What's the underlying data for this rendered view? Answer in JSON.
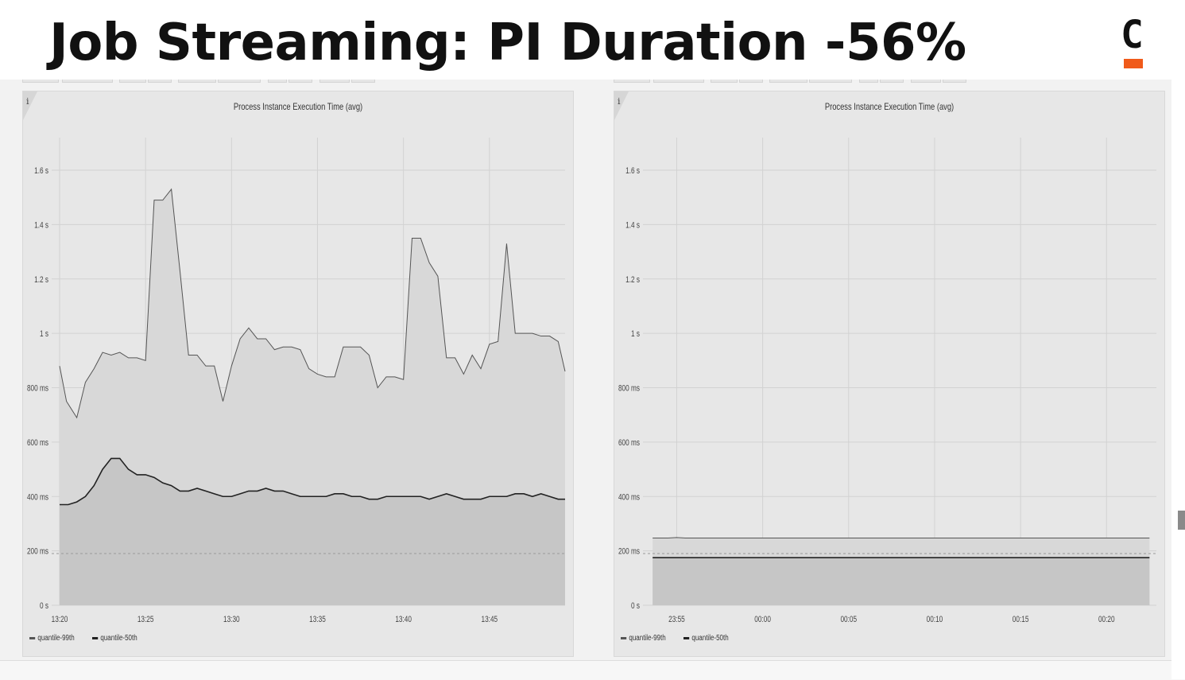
{
  "title": "Job Streaming: PI Duration -56%",
  "logo": {
    "letter": "C",
    "accent": "#f05a1a"
  },
  "colors": {
    "panel": "#e7e7e7",
    "grid": "#d2d2d2",
    "p99_fill": "#d8d8d8",
    "p50_fill": "#c6c6c6",
    "p99_line": "#555555",
    "p50_line": "#222222"
  },
  "chart_data": [
    {
      "type": "area",
      "title": "Process Instance Execution Time (avg)",
      "y_ticks": [
        "0 s",
        "200 ms",
        "400 ms",
        "600 ms",
        "800 ms",
        "1 s",
        "1.2 s",
        "1.4 s",
        "1.6 s"
      ],
      "ylim": [
        0,
        1.72
      ],
      "xlim": [
        0,
        29.4
      ],
      "x_ticks": [
        {
          "label": "13:20",
          "at": 0
        },
        {
          "label": "13:25",
          "at": 5
        },
        {
          "label": "13:30",
          "at": 10
        },
        {
          "label": "13:35",
          "at": 15
        },
        {
          "label": "13:40",
          "at": 20
        },
        {
          "label": "13:45",
          "at": 25
        }
      ],
      "threshold": 0.19,
      "series": [
        {
          "name": "quantile-99th",
          "x": [
            0,
            0.4,
            1,
            1.5,
            2,
            2.5,
            3,
            3.5,
            4,
            4.5,
            5,
            5.5,
            6,
            6.5,
            7,
            7.5,
            8,
            8.5,
            9,
            9.5,
            10,
            10.5,
            11,
            11.5,
            12,
            12.5,
            13,
            13.5,
            14,
            14.5,
            15,
            15.5,
            16,
            16.5,
            17,
            17.5,
            18,
            18.5,
            19,
            19.5,
            20,
            20.5,
            21,
            21.5,
            22,
            22.5,
            23,
            23.5,
            24,
            24.5,
            25,
            25.5,
            26,
            26.5,
            27,
            27.5,
            28,
            28.5,
            29,
            29.4
          ],
          "values": [
            0.88,
            0.75,
            0.69,
            0.82,
            0.87,
            0.93,
            0.92,
            0.93,
            0.91,
            0.91,
            0.9,
            1.49,
            1.49,
            1.53,
            1.23,
            0.92,
            0.92,
            0.88,
            0.88,
            0.75,
            0.88,
            0.98,
            1.02,
            0.98,
            0.98,
            0.94,
            0.95,
            0.95,
            0.94,
            0.87,
            0.85,
            0.84,
            0.84,
            0.95,
            0.95,
            0.95,
            0.92,
            0.8,
            0.84,
            0.84,
            0.83,
            1.35,
            1.35,
            1.26,
            1.21,
            0.91,
            0.91,
            0.85,
            0.92,
            0.87,
            0.96,
            0.97,
            1.33,
            1.0,
            1.0,
            1.0,
            0.99,
            0.99,
            0.97,
            0.86
          ]
        },
        {
          "name": "quantile-50th",
          "x": [
            0,
            0.5,
            1,
            1.5,
            2,
            2.5,
            3,
            3.5,
            4,
            4.5,
            5,
            5.5,
            6,
            6.5,
            7,
            7.5,
            8,
            8.5,
            9,
            9.5,
            10,
            10.5,
            11,
            11.5,
            12,
            12.5,
            13,
            13.5,
            14,
            14.5,
            15,
            15.5,
            16,
            16.5,
            17,
            17.5,
            18,
            18.5,
            19,
            19.5,
            20,
            20.5,
            21,
            21.5,
            22,
            22.5,
            23,
            23.5,
            24,
            24.5,
            25,
            25.5,
            26,
            26.5,
            27,
            27.5,
            28,
            28.5,
            29,
            29.4
          ],
          "values": [
            0.37,
            0.37,
            0.38,
            0.4,
            0.44,
            0.5,
            0.54,
            0.54,
            0.5,
            0.48,
            0.48,
            0.47,
            0.45,
            0.44,
            0.42,
            0.42,
            0.43,
            0.42,
            0.41,
            0.4,
            0.4,
            0.41,
            0.42,
            0.42,
            0.43,
            0.42,
            0.42,
            0.41,
            0.4,
            0.4,
            0.4,
            0.4,
            0.41,
            0.41,
            0.4,
            0.4,
            0.39,
            0.39,
            0.4,
            0.4,
            0.4,
            0.4,
            0.4,
            0.39,
            0.4,
            0.41,
            0.4,
            0.39,
            0.39,
            0.39,
            0.4,
            0.4,
            0.4,
            0.41,
            0.41,
            0.4,
            0.41,
            0.4,
            0.39,
            0.39
          ]
        }
      ],
      "legend": [
        "quantile-99th",
        "quantile-50th"
      ],
      "legend_position": "bottom-left",
      "grid": true
    },
    {
      "type": "area",
      "title": "Process Instance Execution Time (avg)",
      "y_ticks": [
        "0 s",
        "200 ms",
        "400 ms",
        "600 ms",
        "800 ms",
        "1 s",
        "1.2 s",
        "1.4 s",
        "1.6 s"
      ],
      "ylim": [
        0,
        1.72
      ],
      "xlim": [
        0,
        29.4
      ],
      "x_ticks": [
        {
          "label": "23:55",
          "at": 1.5
        },
        {
          "label": "00:00",
          "at": 6.5
        },
        {
          "label": "00:05",
          "at": 11.5
        },
        {
          "label": "00:10",
          "at": 16.5
        },
        {
          "label": "00:15",
          "at": 21.5
        },
        {
          "label": "00:20",
          "at": 26.5
        }
      ],
      "threshold": 0.19,
      "series": [
        {
          "name": "quantile-99th",
          "x": [
            0.1,
            1.0,
            1.5,
            2.0,
            29.0
          ],
          "values": [
            0.247,
            0.247,
            0.249,
            0.247,
            0.247
          ]
        },
        {
          "name": "quantile-50th",
          "x": [
            0.1,
            29.0
          ],
          "values": [
            0.175,
            0.175
          ]
        }
      ],
      "legend": [
        "quantile-99th",
        "quantile-50th"
      ],
      "legend_position": "bottom-left",
      "grid": true
    }
  ]
}
